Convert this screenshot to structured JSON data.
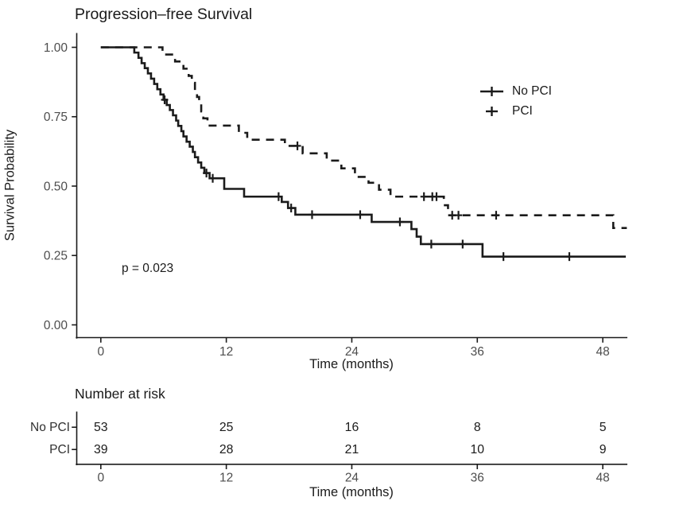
{
  "chart_data": {
    "type": "line",
    "subtype": "kaplan-meier-step",
    "title": "Progression–free Survival",
    "xlabel": "Time (months)",
    "ylabel": "Survival Probability",
    "annotation": "p = 0.023",
    "xticks": [
      0,
      12,
      24,
      36,
      48
    ],
    "yticks": [
      0,
      0.25,
      0.5,
      0.75,
      1
    ],
    "xlim": [
      -2.3,
      50.5
    ],
    "ylim": [
      -0.05,
      1.05
    ],
    "grid": false,
    "legend_position": "inside-right",
    "line_color": "#1b1b1b",
    "series": [
      {
        "name": "No PCI",
        "linestyle": "solid",
        "end_time": 50.2,
        "points": [
          [
            0,
            1.0
          ],
          [
            3.2,
            0.981
          ],
          [
            3.6,
            0.962
          ],
          [
            3.9,
            0.943
          ],
          [
            4.2,
            0.925
          ],
          [
            4.5,
            0.906
          ],
          [
            4.8,
            0.887
          ],
          [
            5.1,
            0.868
          ],
          [
            5.4,
            0.849
          ],
          [
            5.7,
            0.83
          ],
          [
            6.0,
            0.811
          ],
          [
            6.3,
            0.792
          ],
          [
            6.6,
            0.774
          ],
          [
            6.9,
            0.755
          ],
          [
            7.2,
            0.736
          ],
          [
            7.4,
            0.717
          ],
          [
            7.7,
            0.698
          ],
          [
            7.9,
            0.679
          ],
          [
            8.2,
            0.66
          ],
          [
            8.5,
            0.642
          ],
          [
            8.8,
            0.623
          ],
          [
            9.0,
            0.604
          ],
          [
            9.3,
            0.585
          ],
          [
            9.6,
            0.566
          ],
          [
            9.9,
            0.547
          ],
          [
            10.4,
            0.528
          ],
          [
            11.8,
            0.49
          ],
          [
            13.7,
            0.462
          ],
          [
            17.3,
            0.443
          ],
          [
            17.9,
            0.421
          ],
          [
            18.6,
            0.397
          ],
          [
            25.9,
            0.371
          ],
          [
            29.7,
            0.345
          ],
          [
            30.2,
            0.318
          ],
          [
            30.6,
            0.291
          ],
          [
            36.5,
            0.246
          ]
        ],
        "censors": [
          [
            6.1,
            0.811
          ],
          [
            10.1,
            0.547
          ],
          [
            10.7,
            0.528
          ],
          [
            17.0,
            0.462
          ],
          [
            18.2,
            0.421
          ],
          [
            20.2,
            0.397
          ],
          [
            24.8,
            0.397
          ],
          [
            28.6,
            0.371
          ],
          [
            31.6,
            0.291
          ],
          [
            34.6,
            0.291
          ],
          [
            38.5,
            0.246
          ],
          [
            44.8,
            0.246
          ]
        ]
      },
      {
        "name": "PCI",
        "linestyle": "dashed",
        "end_time": 50.3,
        "points": [
          [
            0,
            1.0
          ],
          [
            5.9,
            0.974
          ],
          [
            7.1,
            0.949
          ],
          [
            7.9,
            0.923
          ],
          [
            8.4,
            0.897
          ],
          [
            8.7,
            0.872
          ],
          [
            9.0,
            0.846
          ],
          [
            9.2,
            0.821
          ],
          [
            9.4,
            0.795
          ],
          [
            9.6,
            0.769
          ],
          [
            9.8,
            0.744
          ],
          [
            10.2,
            0.718
          ],
          [
            13.2,
            0.692
          ],
          [
            14.0,
            0.667
          ],
          [
            17.6,
            0.645
          ],
          [
            19.3,
            0.618
          ],
          [
            21.6,
            0.592
          ],
          [
            23.0,
            0.564
          ],
          [
            24.3,
            0.533
          ],
          [
            25.6,
            0.512
          ],
          [
            26.6,
            0.487
          ],
          [
            27.7,
            0.462
          ],
          [
            32.8,
            0.431
          ],
          [
            33.2,
            0.395
          ],
          [
            49.0,
            0.349
          ]
        ],
        "censors": [
          [
            18.8,
            0.645
          ],
          [
            30.9,
            0.462
          ],
          [
            31.7,
            0.462
          ],
          [
            32.1,
            0.462
          ],
          [
            33.6,
            0.395
          ],
          [
            34.2,
            0.395
          ],
          [
            37.8,
            0.395
          ]
        ]
      }
    ],
    "risk_table": {
      "title": "Number at risk",
      "xlabel": "Time (months)",
      "times": [
        0,
        12,
        24,
        36,
        48
      ],
      "rows": [
        {
          "label": "No PCI",
          "counts": [
            "53",
            "25",
            "16",
            "8",
            "5"
          ]
        },
        {
          "label": "PCI",
          "counts": [
            "39",
            "28",
            "21",
            "10",
            "9"
          ]
        }
      ]
    }
  }
}
